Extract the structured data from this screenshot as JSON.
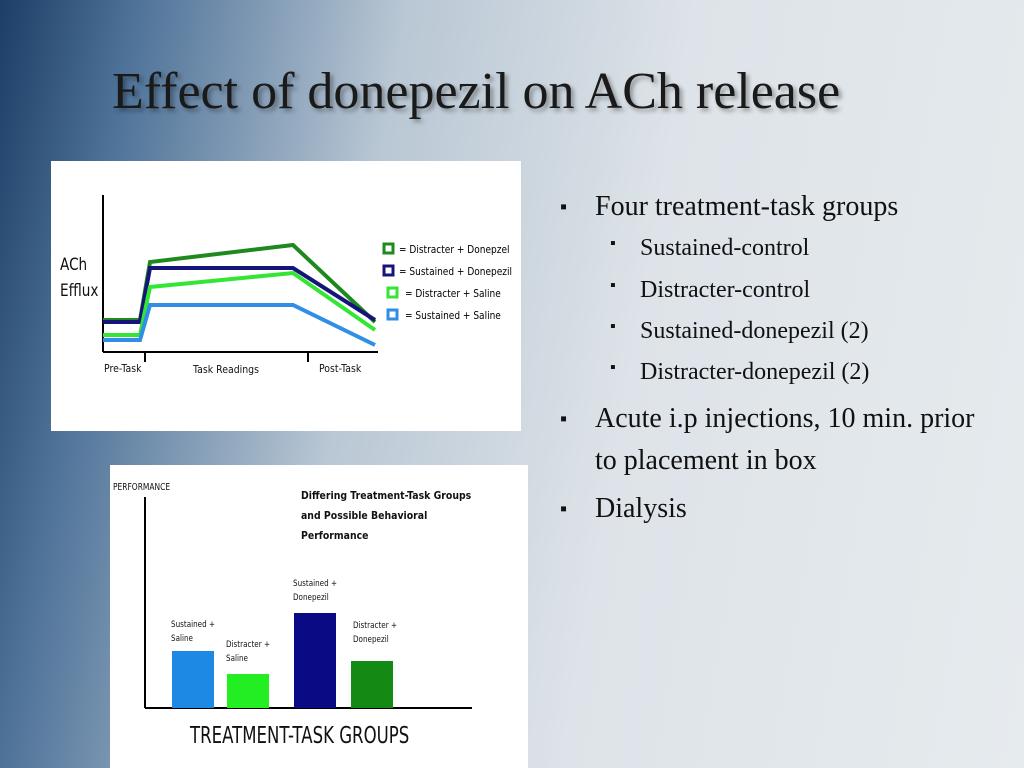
{
  "title": "Effect of donepezil on ACh release",
  "bullets": [
    {
      "text": "Four treatment-task groups",
      "sub": [
        "Sustained-control",
        "Distracter-control",
        "Sustained-donepezil (2)",
        "Distracter-donepezil (2)"
      ]
    },
    {
      "text": "Acute i.p injections, 10 min. prior to placement in box"
    },
    {
      "text": "Dialysis"
    }
  ],
  "chart_data": [
    {
      "type": "line",
      "y_label": "ACh Efflux",
      "categories": [
        "Pre-Task",
        "Task Readings",
        "Post-Task"
      ],
      "x": [
        0,
        37,
        47,
        190,
        272
      ],
      "series": [
        {
          "name": "= Distracter + Donepzel",
          "color": "#1e8a1e",
          "values": [
            30,
            30,
            88,
            105,
            28
          ]
        },
        {
          "name": "= Sustained + Donepezil",
          "color": "#14147a",
          "values": [
            28,
            28,
            82,
            82,
            30
          ]
        },
        {
          "name": "= Distracter + Saline",
          "color": "#33e633",
          "values": [
            15,
            15,
            63,
            77,
            20
          ]
        },
        {
          "name": "= Sustained + Saline",
          "color": "#2f8ee6",
          "values": [
            10,
            10,
            45,
            45,
            5
          ]
        }
      ]
    },
    {
      "type": "bar",
      "title": "Differing Treatment-Task Groups and Possible Behavioral Performance",
      "y_label": "PERFORMANCE",
      "x_label": "TREATMENT-TASK GROUPS",
      "categories": [
        "Sustained + Saline",
        "Distracter + Saline",
        "Sustained + Donepezil",
        "Distracter + Donepezil"
      ],
      "values": [
        57,
        34,
        95,
        47
      ],
      "colors": [
        "#1e88e5",
        "#22ee22",
        "#0a0a85",
        "#138a13"
      ]
    }
  ]
}
